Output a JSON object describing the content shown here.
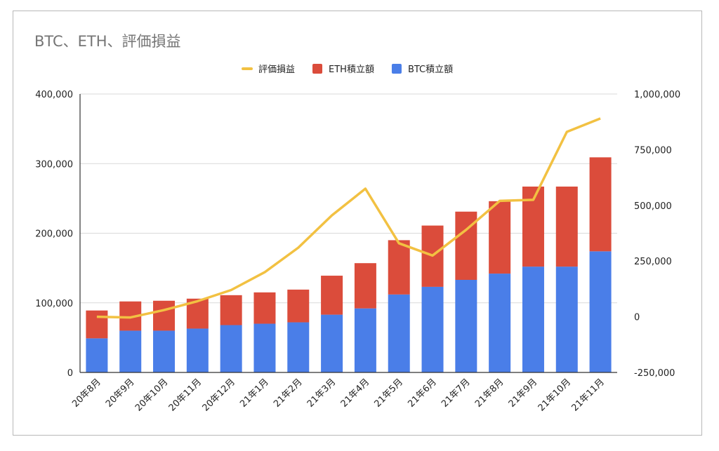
{
  "chart_data": {
    "type": "bar",
    "stacked": true,
    "title": "BTC、ETH、評価損益",
    "xlabel": "",
    "ylabel": "",
    "categories": [
      "20年8月",
      "20年9月",
      "20年10月",
      "20年11月",
      "20年12月",
      "21年1月",
      "21年2月",
      "21年3月",
      "21年4月",
      "21年5月",
      "21年6月",
      "21年7月",
      "21年8月",
      "21年9月",
      "21年10月",
      "21年11月"
    ],
    "series": [
      {
        "name": "BTC積立額",
        "axis": "left",
        "kind": "bar",
        "color": "#4a7ee8",
        "values": [
          49000,
          60000,
          60000,
          63000,
          68000,
          70000,
          72000,
          83000,
          92000,
          112000,
          123000,
          133000,
          142000,
          152000,
          152000,
          174000
        ]
      },
      {
        "name": "ETH積立額",
        "axis": "left",
        "kind": "bar",
        "color": "#db4c3b",
        "values": [
          40000,
          42000,
          43000,
          43000,
          43000,
          45000,
          47000,
          56000,
          65000,
          78000,
          88000,
          98000,
          104000,
          115000,
          115000,
          135000
        ]
      },
      {
        "name": "評価損益",
        "axis": "right",
        "kind": "line",
        "color": "#f2c142",
        "values": [
          0,
          -3000,
          30000,
          70000,
          120000,
          200000,
          310000,
          455000,
          575000,
          330000,
          275000,
          390000,
          520000,
          525000,
          830000,
          890000
        ]
      }
    ],
    "ylim_left": [
      0,
      400000
    ],
    "yticks_left": [
      "0",
      "100,000",
      "200,000",
      "300,000",
      "400,000"
    ],
    "ylim_right": [
      -250000,
      1000000
    ],
    "yticks_right": [
      "-250,000",
      "0",
      "250,000",
      "500,000",
      "750,000",
      "1,000,000"
    ],
    "legend": {
      "position": "top",
      "items": [
        "評価損益",
        "ETH積立額",
        "BTC積立額"
      ]
    },
    "grid": true
  }
}
